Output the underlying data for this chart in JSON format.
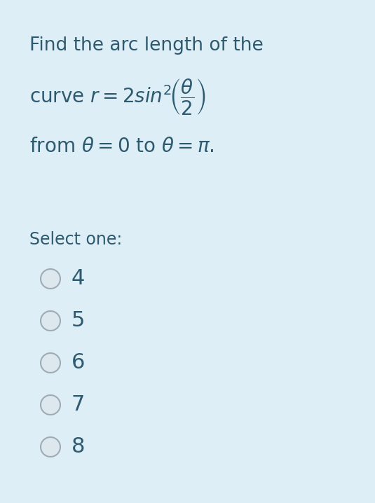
{
  "background_color": "#ddeef7",
  "text_color": "#2d5a6e",
  "title_line": "Find the arc length of the",
  "select_label": "Select one:",
  "options": [
    "4",
    "5",
    "6",
    "7",
    "8"
  ],
  "radio_outer_color": "#9eadb5",
  "radio_fill_color": "#dce8ed",
  "font_size_title": 19,
  "font_size_formula": 20,
  "font_size_from": 20,
  "font_size_options": 22,
  "font_size_select": 17
}
